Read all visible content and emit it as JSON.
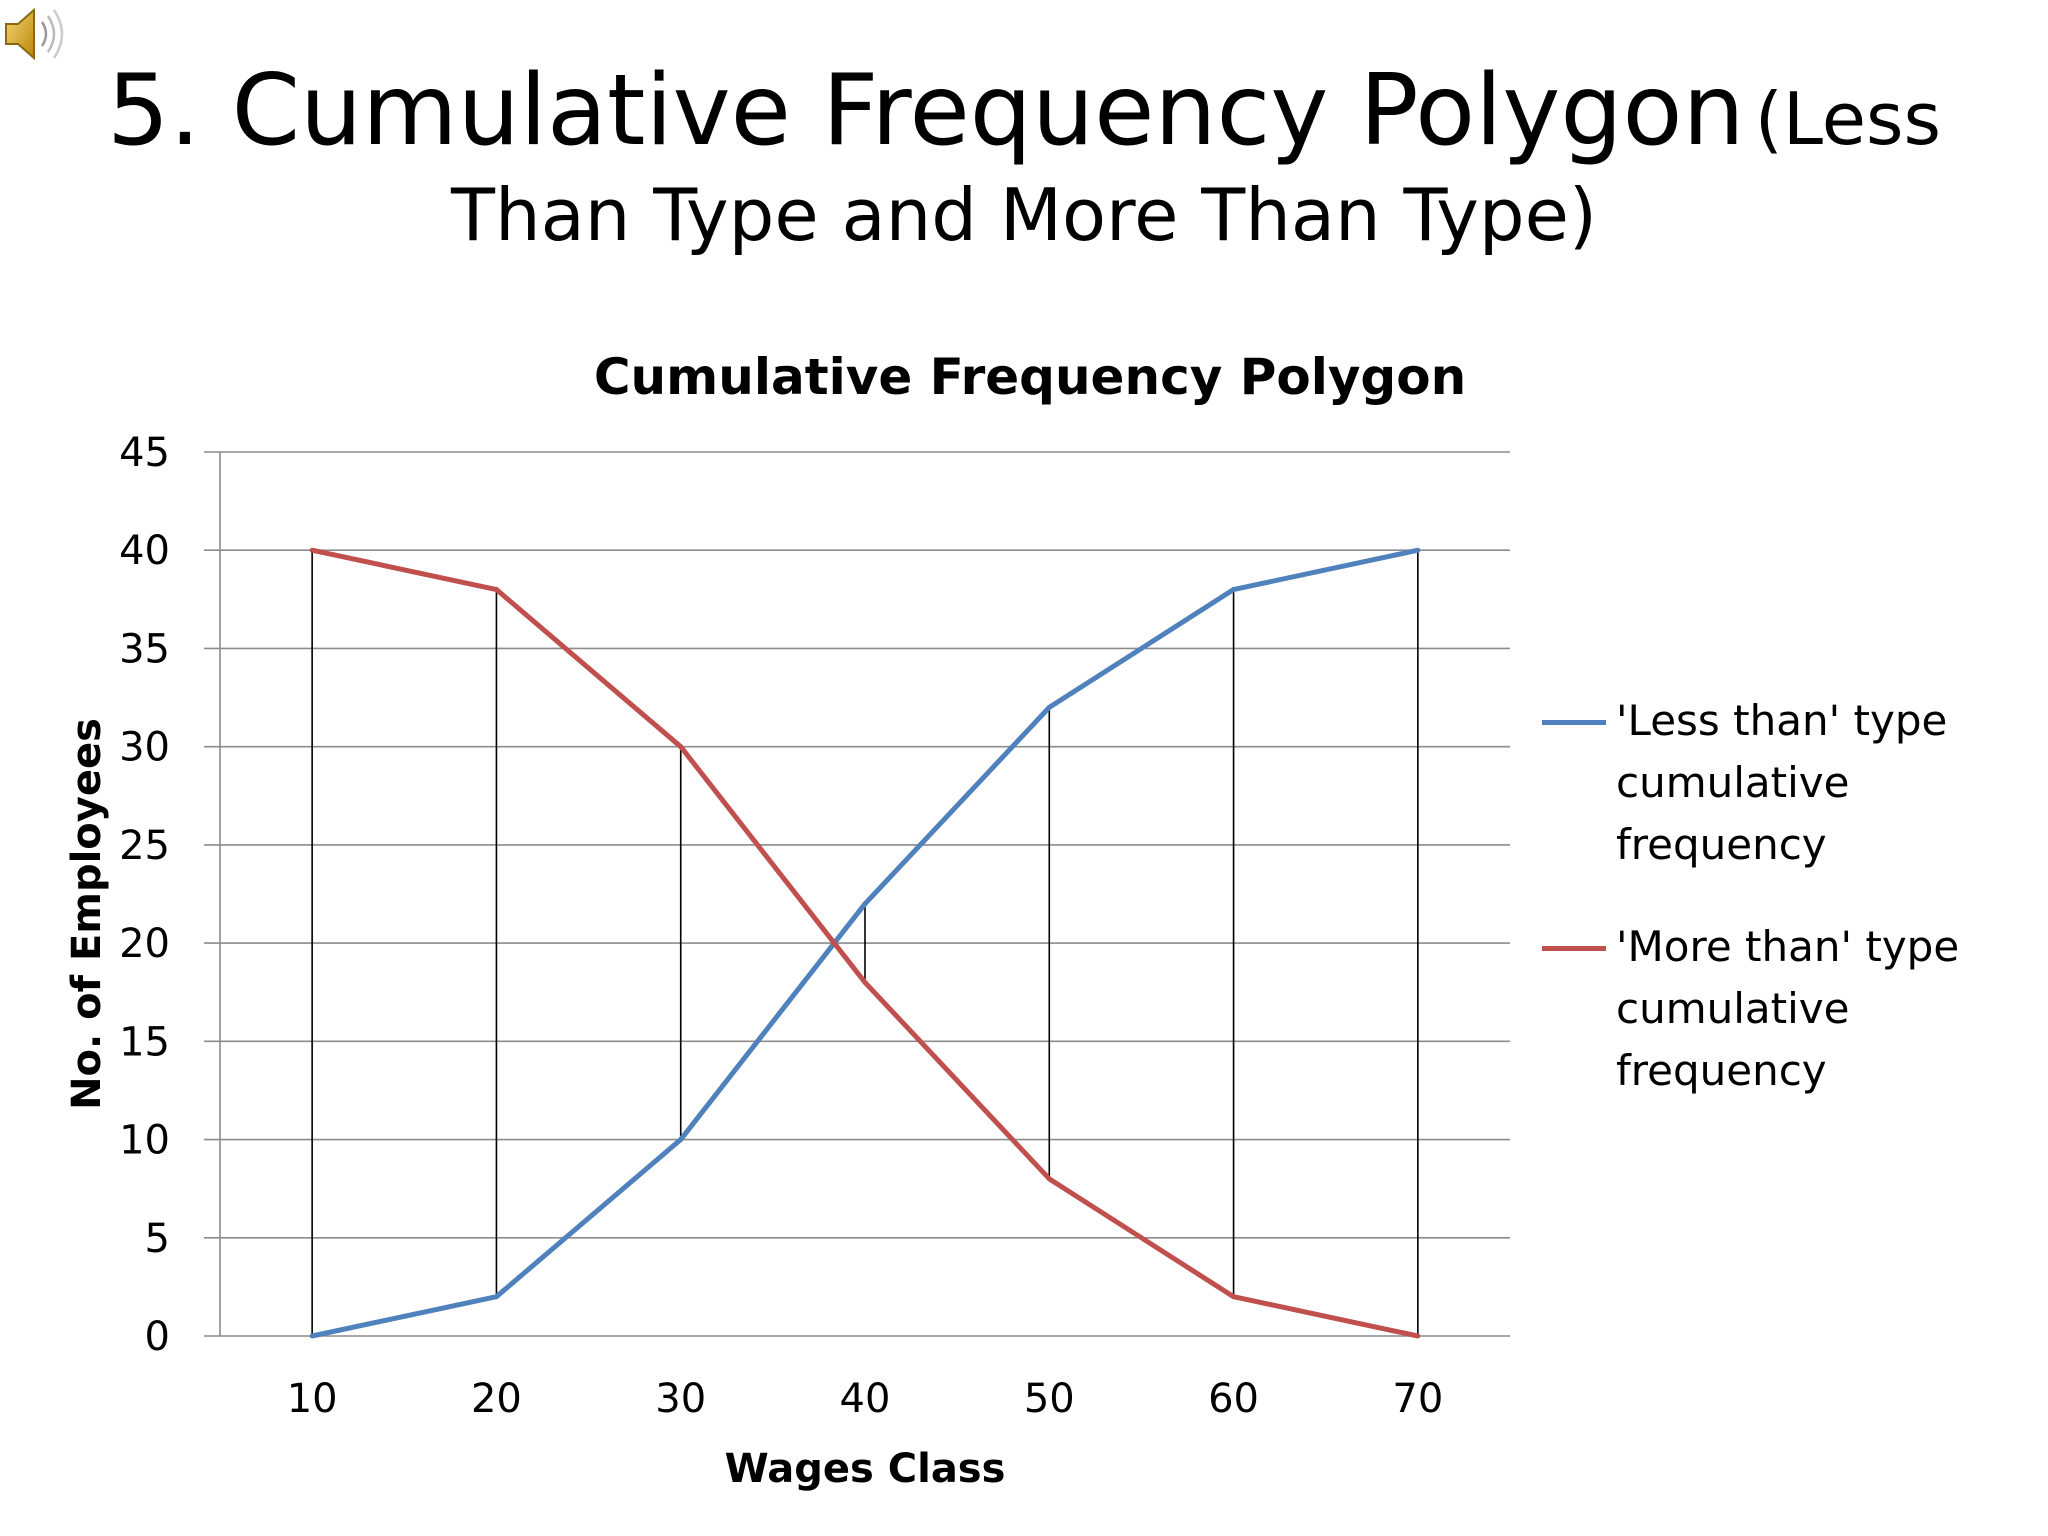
{
  "slide": {
    "title_main": "5. Cumulative Frequency Polygon",
    "title_small_1": "(Less",
    "title_small_2": "Than Type and More Than Type)",
    "speaker_icon": "speaker-icon"
  },
  "chart_data": {
    "type": "line",
    "title": "Cumulative Frequency Polygon",
    "xlabel": "Wages Class",
    "ylabel": "No. of Employees",
    "categories": [
      "10",
      "20",
      "30",
      "40",
      "50",
      "60",
      "70"
    ],
    "x": [
      10,
      20,
      30,
      40,
      50,
      60,
      70
    ],
    "ylim": [
      0,
      45
    ],
    "yticks": [
      0,
      5,
      10,
      15,
      20,
      25,
      30,
      35,
      40,
      45
    ],
    "grid": true,
    "drop_lines": true,
    "legend_position": "right",
    "series": [
      {
        "name": "'Less than' type cumulative frequency",
        "values": [
          0,
          2,
          10,
          22,
          32,
          38,
          40
        ],
        "color": "#4f81bd"
      },
      {
        "name": "'More than' type cumulative frequency",
        "values": [
          40,
          38,
          30,
          18,
          8,
          2,
          0
        ],
        "color": "#c0504d"
      }
    ]
  }
}
